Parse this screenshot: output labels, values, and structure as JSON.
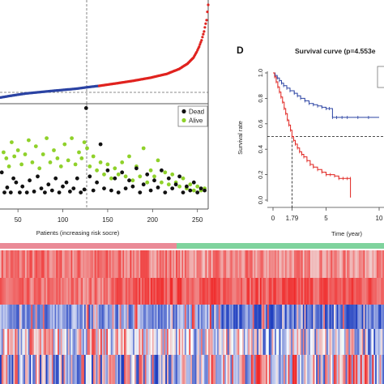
{
  "panel_letters": {
    "survival": "D"
  },
  "risk_scatter_legend": {
    "dead": "Dead",
    "alive": "Alive"
  },
  "colors": {
    "low_risk": "#2b43a3",
    "high_risk": "#e0231f",
    "dead": "#111111",
    "alive": "#8fd12a",
    "low_group_bar": "#7fd39d",
    "high_group_bar": "#ea8a97",
    "heat_low": "#2040c0",
    "heat_high": "#f02020"
  },
  "chart_data": [
    {
      "type": "scatter",
      "name": "risk_score_curve",
      "xlim": [
        0,
        260
      ],
      "cutoff_patient": 128,
      "low_points": [
        [
          1,
          0.02
        ],
        [
          20,
          0.05
        ],
        [
          40,
          0.08
        ],
        [
          60,
          0.1
        ],
        [
          80,
          0.12
        ],
        [
          100,
          0.14
        ],
        [
          120,
          0.17
        ],
        [
          128,
          0.18
        ]
      ],
      "high_points": [
        [
          128,
          0.18
        ],
        [
          150,
          0.22
        ],
        [
          170,
          0.26
        ],
        [
          190,
          0.31
        ],
        [
          210,
          0.38
        ],
        [
          225,
          0.48
        ],
        [
          235,
          0.6
        ],
        [
          242,
          0.75
        ],
        [
          246,
          0.92
        ],
        [
          249,
          1.1
        ],
        [
          252,
          1.35
        ],
        [
          255,
          1.75
        ],
        [
          258,
          2.4
        ],
        [
          260,
          3.6
        ]
      ]
    },
    {
      "type": "scatter",
      "name": "survival_status",
      "xlabel": "Patients (increasing risk socre)",
      "xticks": [
        "50",
        "100",
        "150",
        "200",
        "250"
      ],
      "xtick_values": [
        50,
        100,
        150,
        200,
        250
      ],
      "xlim": [
        30,
        262
      ],
      "cutoff_patient": 128,
      "series": [
        {
          "name": "Dead",
          "points": [
            [
              32,
              3
            ],
            [
              35,
              1
            ],
            [
              38,
              1.5
            ],
            [
              42,
              1
            ],
            [
              45,
              2.4
            ],
            [
              48,
              2
            ],
            [
              52,
              1
            ],
            [
              55,
              1.6
            ],
            [
              60,
              1
            ],
            [
              63,
              2.2
            ],
            [
              68,
              1.1
            ],
            [
              72,
              2.6
            ],
            [
              76,
              1.4
            ],
            [
              80,
              1
            ],
            [
              84,
              1.8
            ],
            [
              88,
              1.2
            ],
            [
              92,
              2.4
            ],
            [
              96,
              1
            ],
            [
              100,
              1.6
            ],
            [
              104,
              2
            ],
            [
              108,
              1.1
            ],
            [
              112,
              1.4
            ],
            [
              116,
              2.4
            ],
            [
              120,
              1
            ],
            [
              124,
              1.3
            ],
            [
              126,
              9.4
            ],
            [
              130,
              2.6
            ],
            [
              134,
              1.2
            ],
            [
              138,
              2
            ],
            [
              142,
              5.8
            ],
            [
              146,
              1.4
            ],
            [
              150,
              3.2
            ],
            [
              154,
              1.2
            ],
            [
              158,
              2.4
            ],
            [
              162,
              1
            ],
            [
              166,
              3
            ],
            [
              170,
              1.4
            ],
            [
              174,
              2.2
            ],
            [
              178,
              1.6
            ],
            [
              182,
              3.4
            ],
            [
              186,
              1
            ],
            [
              190,
              1.8
            ],
            [
              194,
              2.8
            ],
            [
              198,
              1.2
            ],
            [
              202,
              2.2
            ],
            [
              206,
              1.5
            ],
            [
              210,
              3.2
            ],
            [
              214,
              1
            ],
            [
              218,
              2.4
            ],
            [
              222,
              1.4
            ],
            [
              226,
              1.8
            ],
            [
              230,
              2.6
            ],
            [
              234,
              1
            ],
            [
              238,
              1.6
            ],
            [
              242,
              1.2
            ],
            [
              246,
              2
            ],
            [
              250,
              1
            ],
            [
              254,
              1.4
            ],
            [
              258,
              1.2
            ]
          ]
        },
        {
          "name": "Alive",
          "points": [
            [
              34,
              5
            ],
            [
              37,
              4.4
            ],
            [
              40,
              3.6
            ],
            [
              43,
              6
            ],
            [
              46,
              4.6
            ],
            [
              50,
              5.2
            ],
            [
              54,
              3.8
            ],
            [
              58,
              4.8
            ],
            [
              62,
              6.2
            ],
            [
              66,
              4
            ],
            [
              70,
              5.6
            ],
            [
              74,
              3.4
            ],
            [
              78,
              4.8
            ],
            [
              82,
              6.4
            ],
            [
              86,
              4
            ],
            [
              90,
              5.2
            ],
            [
              94,
              4.4
            ],
            [
              98,
              3.6
            ],
            [
              102,
              5.8
            ],
            [
              106,
              4.2
            ],
            [
              110,
              6.4
            ],
            [
              114,
              3.8
            ],
            [
              118,
              5
            ],
            [
              121,
              4.4
            ],
            [
              124,
              6
            ],
            [
              127,
              5.4
            ],
            [
              130,
              3.6
            ],
            [
              134,
              4.6
            ],
            [
              138,
              3.2
            ],
            [
              142,
              4
            ],
            [
              146,
              2.8
            ],
            [
              150,
              3.8
            ],
            [
              154,
              2.4
            ],
            [
              158,
              3.4
            ],
            [
              162,
              2.8
            ],
            [
              166,
              4
            ],
            [
              170,
              2.6
            ],
            [
              174,
              4.6
            ],
            [
              178,
              2.2
            ],
            [
              182,
              3.6
            ],
            [
              186,
              2.6
            ],
            [
              190,
              5.4
            ],
            [
              194,
              2
            ],
            [
              198,
              3.2
            ],
            [
              202,
              2.6
            ],
            [
              206,
              4.2
            ],
            [
              210,
              2
            ],
            [
              214,
              3
            ],
            [
              218,
              1.8
            ],
            [
              222,
              2.8
            ],
            [
              226,
              2
            ],
            [
              230,
              1.6
            ],
            [
              234,
              2.4
            ],
            [
              238,
              1.4
            ],
            [
              242,
              1.8
            ],
            [
              246,
              1.2
            ],
            [
              250,
              1.6
            ],
            [
              254,
              1.2
            ],
            [
              258,
              1.4
            ]
          ]
        }
      ]
    },
    {
      "type": "line",
      "name": "survival_curve",
      "title": "Survival curve (p=4.553e",
      "xlabel": "Time (year)",
      "ylabel": "Survival rate",
      "xlim": [
        -0.4,
        10.6
      ],
      "ylim": [
        -0.05,
        1.05
      ],
      "xticks": [
        "0",
        "1.79",
        "5",
        "10"
      ],
      "xtick_values": [
        0,
        1.79,
        5,
        10
      ],
      "yticks": [
        "0.0",
        "0.2",
        "0.4",
        "0.6",
        "0.8",
        "1.0"
      ],
      "ytick_values": [
        0,
        0.2,
        0.4,
        0.6,
        0.8,
        1.0
      ],
      "median_time": 1.79,
      "median_level": 0.5,
      "series": [
        {
          "name": "low",
          "x": [
            0,
            0.2,
            0.4,
            0.6,
            0.8,
            1.0,
            1.3,
            1.6,
            2.0,
            2.3,
            2.6,
            3.0,
            3.4,
            3.8,
            4.2,
            4.6,
            5.0,
            5.3,
            5.6,
            6.0,
            6.5,
            7.0,
            8.0,
            9.0,
            10.0
          ],
          "y": [
            1.0,
            0.98,
            0.96,
            0.94,
            0.92,
            0.9,
            0.88,
            0.86,
            0.84,
            0.82,
            0.8,
            0.78,
            0.76,
            0.75,
            0.74,
            0.73,
            0.72,
            0.72,
            0.65,
            0.65,
            0.65,
            0.65,
            0.65,
            0.65,
            0.65
          ]
        },
        {
          "name": "high",
          "x": [
            0,
            0.15,
            0.3,
            0.45,
            0.6,
            0.75,
            0.9,
            1.05,
            1.2,
            1.35,
            1.5,
            1.65,
            1.79,
            1.95,
            2.1,
            2.3,
            2.5,
            2.7,
            2.9,
            3.2,
            3.5,
            3.8,
            4.2,
            4.6,
            5.0,
            5.4,
            5.8,
            6.2,
            6.6,
            7.0,
            7.3,
            7.3
          ],
          "y": [
            1.0,
            0.97,
            0.93,
            0.89,
            0.85,
            0.81,
            0.77,
            0.72,
            0.68,
            0.63,
            0.59,
            0.55,
            0.5,
            0.47,
            0.44,
            0.41,
            0.38,
            0.36,
            0.34,
            0.31,
            0.28,
            0.26,
            0.24,
            0.22,
            0.2,
            0.2,
            0.19,
            0.17,
            0.17,
            0.17,
            0.17,
            0.02
          ]
        }
      ]
    },
    {
      "type": "heatmap",
      "name": "gene_expression_heatmap",
      "rows": 5,
      "columns": 260,
      "cutoff_column": 128,
      "row_profiles": [
        "red",
        "red",
        "blue",
        "mixed",
        "blue-red"
      ]
    }
  ]
}
